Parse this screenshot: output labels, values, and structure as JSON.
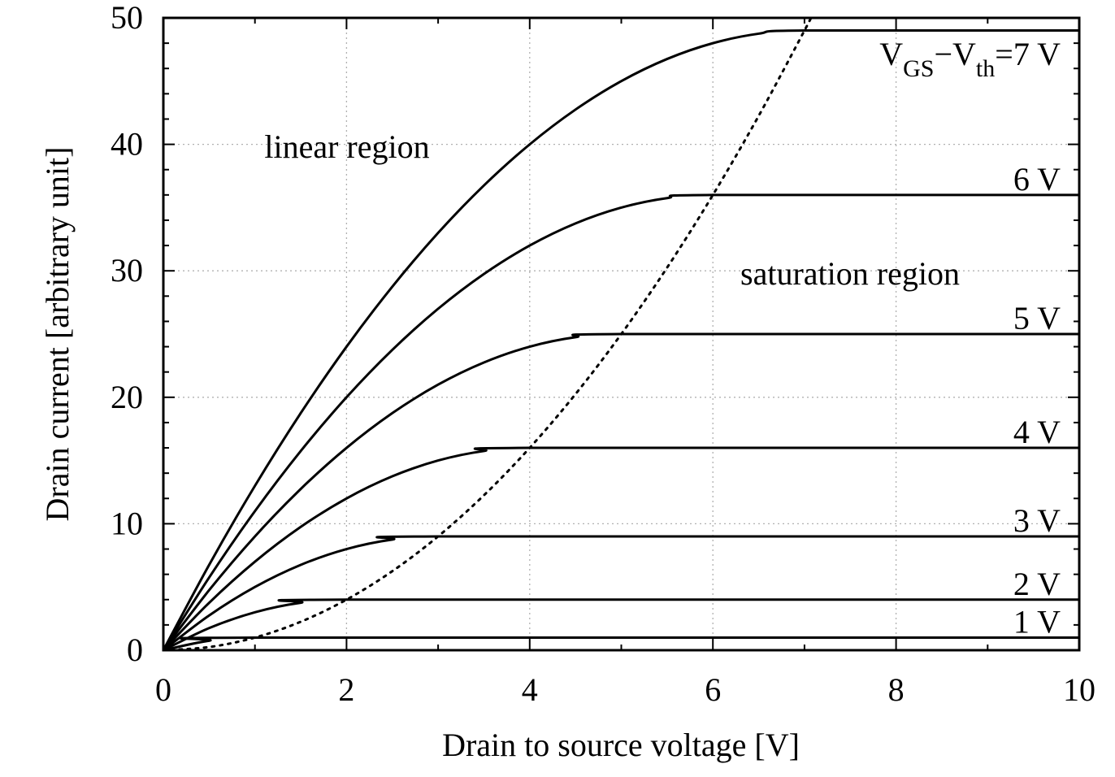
{
  "chart_data": {
    "type": "line",
    "title": "",
    "xlabel": "Drain to source voltage [V]",
    "ylabel": "Drain current [arbitrary unit]",
    "xlim": [
      0,
      10
    ],
    "ylim": [
      0,
      50
    ],
    "xticks": [
      "0",
      "2",
      "4",
      "6",
      "8",
      "10"
    ],
    "yticks": [
      "0",
      "10",
      "20",
      "30",
      "40",
      "50"
    ],
    "grid": true,
    "annotations": [
      "linear region",
      "saturation region"
    ],
    "series": [
      {
        "name": "1 V",
        "style": "solid",
        "x": [
          0,
          0.5,
          1,
          10
        ],
        "y": [
          0,
          0.75,
          1,
          1
        ]
      },
      {
        "name": "2 V",
        "style": "solid",
        "x": [
          0,
          0.5,
          1,
          1.5,
          2,
          10
        ],
        "y": [
          0,
          1.75,
          3,
          3.75,
          4,
          4
        ]
      },
      {
        "name": "3 V",
        "style": "solid",
        "x": [
          0,
          0.5,
          1,
          1.5,
          2,
          2.5,
          3,
          10
        ],
        "y": [
          0,
          2.75,
          5,
          6.75,
          8,
          8.75,
          9,
          9
        ]
      },
      {
        "name": "4 V",
        "style": "solid",
        "x": [
          0,
          0.5,
          1,
          1.5,
          2,
          2.5,
          3,
          3.5,
          4,
          10
        ],
        "y": [
          0,
          3.75,
          7,
          9.75,
          12,
          13.75,
          15,
          15.75,
          16,
          16
        ]
      },
      {
        "name": "5 V",
        "style": "solid",
        "x": [
          0,
          0.5,
          1,
          1.5,
          2,
          2.5,
          3,
          3.5,
          4,
          4.5,
          5,
          10
        ],
        "y": [
          0,
          4.75,
          9,
          12.75,
          16,
          18.75,
          21,
          22.75,
          24,
          24.75,
          25,
          25
        ]
      },
      {
        "name": "6 V",
        "style": "solid",
        "x": [
          0,
          0.5,
          1,
          1.5,
          2,
          2.5,
          3,
          3.5,
          4,
          4.5,
          5,
          5.5,
          6,
          10
        ],
        "y": [
          0,
          5.75,
          11,
          15.75,
          20,
          23.75,
          27,
          29.75,
          32,
          33.75,
          35,
          35.75,
          36,
          36
        ]
      },
      {
        "name": "VGS−Vth=7 V",
        "name_parts": [
          "V",
          "GS",
          "−V",
          "th",
          "=7 V"
        ],
        "style": "solid",
        "x": [
          0,
          0.5,
          1,
          1.5,
          2,
          2.5,
          3,
          3.5,
          4,
          4.5,
          5,
          5.5,
          6,
          6.5,
          7,
          10
        ],
        "y": [
          0,
          6.75,
          13,
          18.75,
          24,
          28.75,
          33,
          36.75,
          40,
          42.75,
          45,
          46.75,
          48,
          48.75,
          49,
          49
        ]
      },
      {
        "style": "dotted",
        "x": [
          0,
          0.5,
          1,
          1.5,
          2,
          2.5,
          3,
          3.5,
          4,
          4.5,
          5,
          5.5,
          6,
          6.5,
          7,
          7.07
        ],
        "y": [
          0,
          0.25,
          1,
          2.25,
          4,
          6.25,
          9,
          12.25,
          16,
          20.25,
          25,
          30.25,
          36,
          42.25,
          49,
          50
        ]
      }
    ]
  }
}
